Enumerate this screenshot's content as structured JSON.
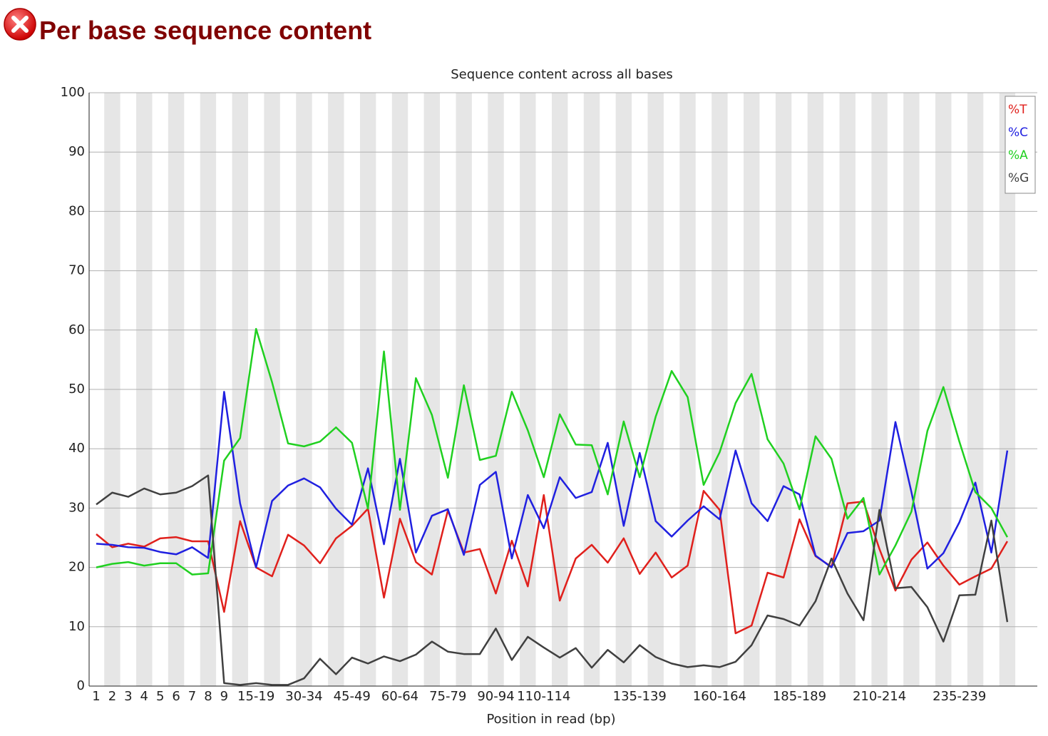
{
  "header": {
    "title": "Per base sequence content"
  },
  "chart_data": {
    "type": "line",
    "title": "Sequence content across all bases",
    "xlabel": "Position in read (bp)",
    "categories": [
      "1",
      "2",
      "3",
      "4",
      "5",
      "6",
      "7",
      "8",
      "9",
      null,
      "15-19",
      null,
      null,
      "30-34",
      null,
      null,
      "45-49",
      null,
      null,
      "60-64",
      null,
      null,
      "75-79",
      null,
      null,
      "90-94",
      null,
      null,
      "110-114",
      null,
      null,
      null,
      null,
      null,
      "135-139",
      null,
      null,
      null,
      null,
      "160-164",
      null,
      null,
      null,
      null,
      "185-189",
      null,
      null,
      null,
      null,
      "210-214",
      null,
      null,
      null,
      null,
      "235-239",
      null,
      null,
      null
    ],
    "series": [
      {
        "name": "%T",
        "color": "#e0201c",
        "values": [
          25.6,
          23.4,
          24,
          23.5,
          24.9,
          25.1,
          24.4,
          24.4,
          12.5,
          27.8,
          20,
          18.5,
          25.5,
          23.7,
          20.7,
          24.9,
          27,
          29.9,
          14.9,
          28.2,
          20.9,
          18.8,
          29.6,
          22.5,
          23.1,
          15.6,
          24.5,
          16.8,
          32.2,
          14.4,
          21.5,
          23.8,
          20.8,
          24.9,
          18.9,
          22.5,
          18.3,
          20.3,
          32.9,
          29.7,
          8.9,
          10.2,
          19.1,
          18.3,
          28.1,
          21.9,
          20.1,
          30.8,
          31.1,
          23.1,
          16.1,
          21.3,
          24.2,
          20.3,
          17.1,
          18.5,
          19.8,
          24.4
        ]
      },
      {
        "name": "%C",
        "color": "#2020e0",
        "values": [
          24,
          23.8,
          23.4,
          23.3,
          22.6,
          22.2,
          23.4,
          21.6,
          49.6,
          30.8,
          20,
          31.2,
          33.8,
          35,
          33.5,
          29.9,
          27.2,
          36.7,
          23.9,
          38.3,
          22.5,
          28.7,
          29.8,
          22.1,
          33.9,
          36.1,
          21.5,
          32.2,
          26.6,
          35.2,
          31.7,
          32.7,
          41,
          27,
          39.3,
          27.8,
          25.2,
          27.9,
          30.3,
          28.1,
          39.7,
          30.8,
          27.8,
          33.7,
          32.3,
          22,
          20,
          25.8,
          26.1,
          27.9,
          44.5,
          32.7,
          19.8,
          22.4,
          27.6,
          34.3,
          22.5,
          39.7
        ]
      },
      {
        "name": "%A",
        "color": "#20d020",
        "values": [
          20,
          20.6,
          20.9,
          20.3,
          20.7,
          20.7,
          18.8,
          19,
          38,
          41.8,
          60.2,
          51.2,
          40.9,
          40.4,
          41.2,
          43.6,
          41,
          29.9,
          56.4,
          29.7,
          51.9,
          45.7,
          35.1,
          50.7,
          38.1,
          38.8,
          49.6,
          43.1,
          35.2,
          45.8,
          40.7,
          40.6,
          32.3,
          44.6,
          35.2,
          45.4,
          53.1,
          48.7,
          33.9,
          39.4,
          47.7,
          52.6,
          41.6,
          37.5,
          29.8,
          42.1,
          38.3,
          28.2,
          31.7,
          18.8,
          23.7,
          29.4,
          43,
          50.4,
          41.2,
          32.7,
          30,
          25.1
        ]
      },
      {
        "name": "%G",
        "color": "#404040",
        "values": [
          30.6,
          32.6,
          31.9,
          33.3,
          32.3,
          32.6,
          33.7,
          35.5,
          0.5,
          0.2,
          0.5,
          0.2,
          0.2,
          1.3,
          4.6,
          2,
          4.8,
          3.8,
          5,
          4.2,
          5.3,
          7.5,
          5.8,
          5.4,
          5.4,
          9.7,
          4.4,
          8.3,
          6.5,
          4.8,
          6.4,
          3.1,
          6.1,
          4,
          6.9,
          4.9,
          3.8,
          3.2,
          3.5,
          3.2,
          4.1,
          6.9,
          11.9,
          11.3,
          10.2,
          14.3,
          21.5,
          15.6,
          11.1,
          29.7,
          16.5,
          16.7,
          13.3,
          7.5,
          15.3,
          15.4,
          27.9,
          10.8
        ]
      }
    ],
    "ylim": [
      0,
      100
    ],
    "yticks": [
      0,
      10,
      20,
      30,
      40,
      50,
      60,
      70,
      80,
      90,
      100
    ],
    "grid": true,
    "legend": "top-right"
  }
}
